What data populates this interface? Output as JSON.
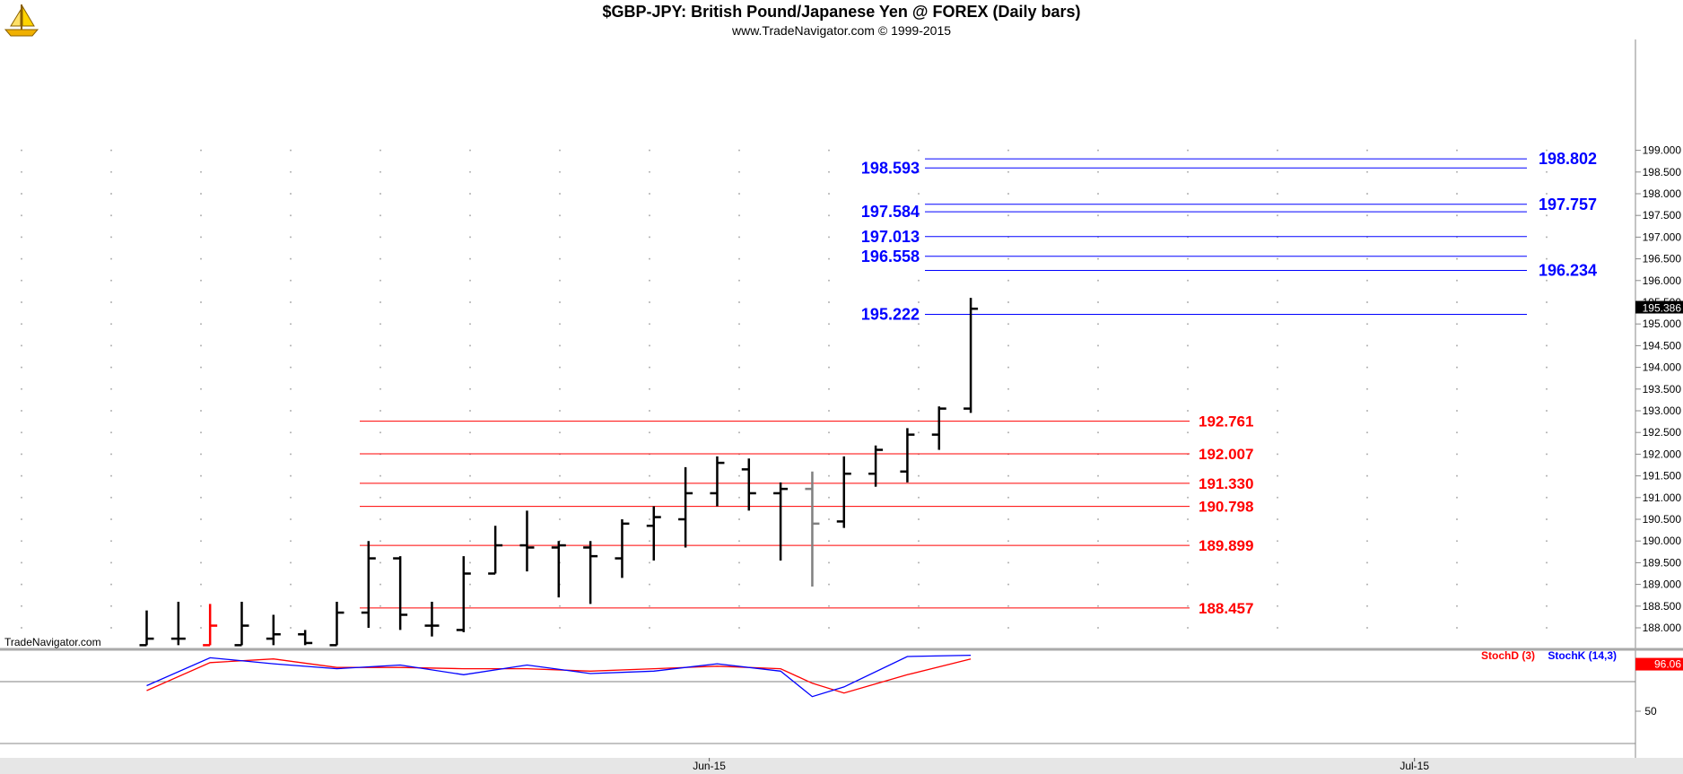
{
  "header": {
    "title": "$GBP-JPY:  British Pound/Japanese Yen @ FOREX  (Daily bars)",
    "subtitle": "www.TradeNavigator.com © 1999-2015",
    "watermark": "TradeNavigator.com"
  },
  "chart_data": {
    "type": "ohlc",
    "ylim": [
      187.6,
      199.1
    ],
    "grid": true,
    "price_axis_ticks": [
      "199.000",
      "198.500",
      "198.000",
      "197.500",
      "197.000",
      "196.500",
      "196.000",
      "195.500",
      "195.000",
      "194.500",
      "194.000",
      "193.500",
      "193.000",
      "192.500",
      "192.000",
      "191.500",
      "191.000",
      "190.500",
      "190.000",
      "189.500",
      "189.000",
      "188.500",
      "188.000"
    ],
    "last_price": "195.386",
    "date_labels": [
      {
        "label": "Jun-15",
        "bar": 17.75
      },
      {
        "label": "Jul-15",
        "bar": 40
      }
    ],
    "bars": [
      {
        "o": 187.6,
        "h": 188.4,
        "l": 187.6,
        "c": 187.75,
        "color": "#000000"
      },
      {
        "o": 187.75,
        "h": 188.6,
        "l": 187.6,
        "c": 187.75,
        "color": "#000000"
      },
      {
        "o": 187.6,
        "h": 188.55,
        "l": 187.6,
        "c": 188.05,
        "color": "#ff0000"
      },
      {
        "o": 187.6,
        "h": 188.6,
        "l": 187.6,
        "c": 188.05,
        "color": "#000000"
      },
      {
        "o": 187.75,
        "h": 188.3,
        "l": 187.6,
        "c": 187.85,
        "color": "#000000"
      },
      {
        "o": 187.85,
        "h": 187.95,
        "l": 187.6,
        "c": 187.65,
        "color": "#000000"
      },
      {
        "o": 187.6,
        "h": 188.6,
        "l": 187.6,
        "c": 188.35,
        "color": "#000000"
      },
      {
        "o": 188.35,
        "h": 190.0,
        "l": 188.0,
        "c": 189.6,
        "color": "#000000"
      },
      {
        "o": 189.6,
        "h": 189.65,
        "l": 187.95,
        "c": 188.3,
        "color": "#000000"
      },
      {
        "o": 188.05,
        "h": 188.6,
        "l": 187.8,
        "c": 188.05,
        "color": "#000000"
      },
      {
        "o": 187.95,
        "h": 189.65,
        "l": 187.9,
        "c": 189.25,
        "color": "#000000"
      },
      {
        "o": 189.25,
        "h": 190.35,
        "l": 189.25,
        "c": 189.9,
        "color": "#000000"
      },
      {
        "o": 189.9,
        "h": 190.7,
        "l": 189.3,
        "c": 189.85,
        "color": "#000000"
      },
      {
        "o": 189.85,
        "h": 190.0,
        "l": 188.7,
        "c": 189.9,
        "color": "#000000"
      },
      {
        "o": 189.85,
        "h": 190.0,
        "l": 188.55,
        "c": 189.65,
        "color": "#000000"
      },
      {
        "o": 189.6,
        "h": 190.5,
        "l": 189.15,
        "c": 190.4,
        "color": "#000000"
      },
      {
        "o": 190.35,
        "h": 190.8,
        "l": 189.55,
        "c": 190.55,
        "color": "#000000"
      },
      {
        "o": 190.5,
        "h": 191.7,
        "l": 189.85,
        "c": 191.1,
        "color": "#000000"
      },
      {
        "o": 191.1,
        "h": 191.95,
        "l": 190.8,
        "c": 191.8,
        "color": "#000000"
      },
      {
        "o": 191.65,
        "h": 191.9,
        "l": 190.7,
        "c": 191.1,
        "color": "#000000"
      },
      {
        "o": 191.1,
        "h": 191.35,
        "l": 189.55,
        "c": 191.2,
        "color": "#000000"
      },
      {
        "o": 191.2,
        "h": 191.6,
        "l": 188.95,
        "c": 190.4,
        "color": "#808080"
      },
      {
        "o": 190.45,
        "h": 191.95,
        "l": 190.3,
        "c": 191.55,
        "color": "#000000"
      },
      {
        "o": 191.55,
        "h": 192.2,
        "l": 191.25,
        "c": 192.1,
        "color": "#000000"
      },
      {
        "o": 191.6,
        "h": 192.6,
        "l": 191.35,
        "c": 192.45,
        "color": "#000000"
      },
      {
        "o": 192.45,
        "h": 193.1,
        "l": 192.1,
        "c": 193.05,
        "color": "#000000"
      },
      {
        "o": 193.05,
        "h": 195.6,
        "l": 192.95,
        "c": 195.35,
        "color": "#000000"
      }
    ],
    "resistance_levels": [
      {
        "value": 198.802,
        "label": "198.802",
        "side": "right"
      },
      {
        "value": 198.593,
        "label": "198.593",
        "side": "left"
      },
      {
        "value": 197.757,
        "label": "197.757",
        "side": "right"
      },
      {
        "value": 197.584,
        "label": "197.584",
        "side": "left"
      },
      {
        "value": 197.013,
        "label": "197.013",
        "side": "left"
      },
      {
        "value": 196.558,
        "label": "196.558",
        "side": "left"
      },
      {
        "value": 196.234,
        "label": "196.234",
        "side": "right"
      },
      {
        "value": 195.222,
        "label": "195.222",
        "side": "left"
      }
    ],
    "support_levels": [
      {
        "value": 192.761,
        "label": "192.761"
      },
      {
        "value": 192.007,
        "label": "192.007"
      },
      {
        "value": 191.33,
        "label": "191.330"
      },
      {
        "value": 190.798,
        "label": "190.798"
      },
      {
        "value": 189.899,
        "label": "189.899"
      },
      {
        "value": 188.457,
        "label": "188.457"
      }
    ],
    "colors": {
      "resistance": "#0000ff",
      "support": "#ff0000",
      "stochK": "#0000ff",
      "stochD": "#ff0000"
    },
    "stochastic": {
      "legend_d": "StochD (3)",
      "legend_k": "StochK (14,3)",
      "axis_label": "50",
      "last_value": "96.06",
      "ylim": [
        0,
        100
      ],
      "k": [
        [
          0,
          71
        ],
        [
          2,
          94
        ],
        [
          4,
          89
        ],
        [
          6,
          85
        ],
        [
          8,
          88
        ],
        [
          10,
          80
        ],
        [
          12,
          88
        ],
        [
          14,
          81
        ],
        [
          16,
          83
        ],
        [
          18,
          89
        ],
        [
          20,
          83
        ],
        [
          21,
          62
        ],
        [
          22,
          70
        ],
        [
          24,
          95
        ],
        [
          26,
          96
        ]
      ],
      "d": [
        [
          0,
          67
        ],
        [
          2,
          90
        ],
        [
          4,
          93
        ],
        [
          6,
          86
        ],
        [
          8,
          86
        ],
        [
          10,
          85
        ],
        [
          12,
          85
        ],
        [
          14,
          83
        ],
        [
          16,
          85
        ],
        [
          18,
          87
        ],
        [
          20,
          85
        ],
        [
          21,
          73
        ],
        [
          22,
          65
        ],
        [
          24,
          80
        ],
        [
          26,
          93
        ]
      ]
    }
  }
}
